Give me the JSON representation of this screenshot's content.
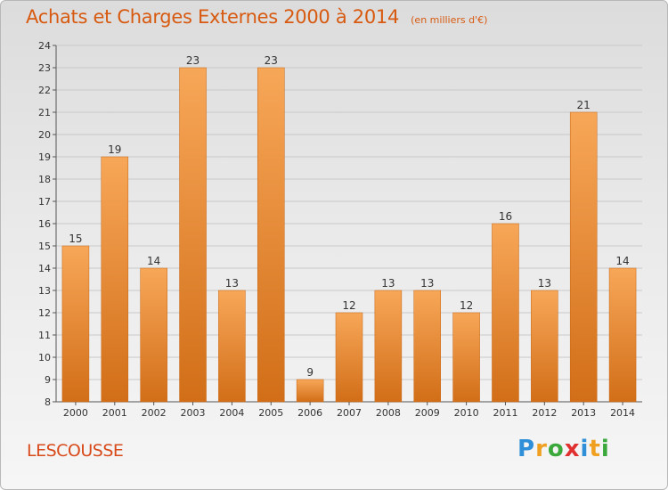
{
  "title": "Achats et Charges Externes 2000 à 2014",
  "subtitle": "(en milliers d'€)",
  "commune": "LESCOUSSE",
  "brand": {
    "letters": [
      "P",
      "r",
      "o",
      "x",
      "i",
      "t",
      "i"
    ],
    "colors": [
      "#2f8fd8",
      "#f0a020",
      "#3aa83a",
      "#e03030",
      "#2f8fd8",
      "#f0a020",
      "#3aa83a"
    ]
  },
  "colors": {
    "bar_top": "#f7a758",
    "bar_bottom": "#d26e18",
    "grid": "#c9c9c9",
    "axis": "#555555",
    "text": "#333333"
  },
  "chart_data": {
    "type": "bar",
    "categories": [
      "2000",
      "2001",
      "2002",
      "2003",
      "2004",
      "2005",
      "2006",
      "2007",
      "2008",
      "2009",
      "2010",
      "2011",
      "2012",
      "2013",
      "2014"
    ],
    "values": [
      15,
      19,
      14,
      23,
      13,
      23,
      9,
      12,
      13,
      13,
      12,
      16,
      13,
      21,
      14
    ],
    "data_labels": [
      "15",
      "19",
      "14",
      "23",
      "13",
      "23",
      "9",
      "12",
      "13",
      "13",
      "12",
      "16",
      "13",
      "21",
      "14"
    ],
    "y_ticks": [
      "8",
      "9",
      "10",
      "11",
      "12",
      "13",
      "14",
      "15",
      "16",
      "17",
      "18",
      "19",
      "20",
      "21",
      "22",
      "23",
      "24"
    ],
    "ylim": [
      8,
      24
    ],
    "grid": true,
    "xlabel": "",
    "ylabel": ""
  }
}
